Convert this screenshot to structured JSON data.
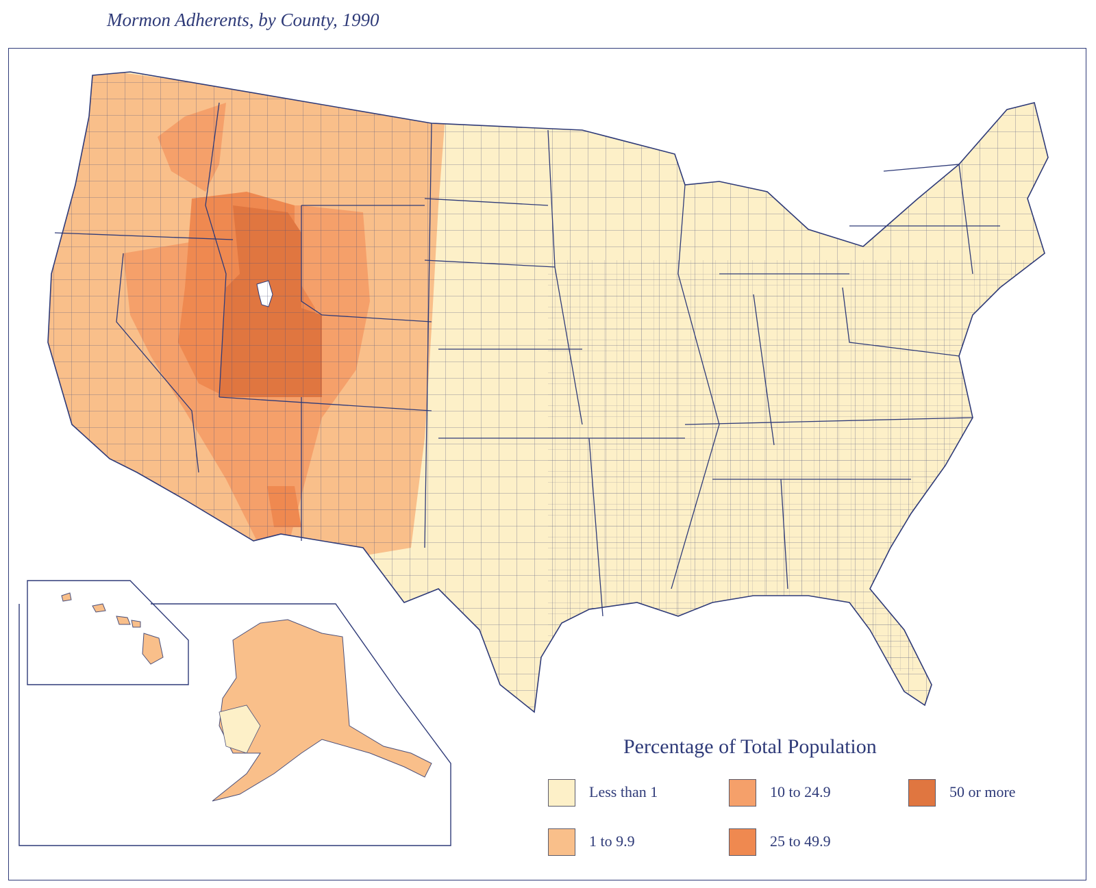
{
  "title": "Mormon Adherents, by County, 1990",
  "legend": {
    "title": "Percentage of Total Population",
    "items": [
      {
        "label": "Less than 1",
        "color": "#fdf0c8"
      },
      {
        "label": "1 to 9.9",
        "color": "#f9bf8a"
      },
      {
        "label": "10 to 24.9",
        "color": "#f5a06a"
      },
      {
        "label": "25 to 49.9",
        "color": "#ef8950"
      },
      {
        "label": "50 or more",
        "color": "#e07640"
      }
    ]
  },
  "colors": {
    "ink": "#2e3a78",
    "county_border": "#4a4f7a"
  }
}
